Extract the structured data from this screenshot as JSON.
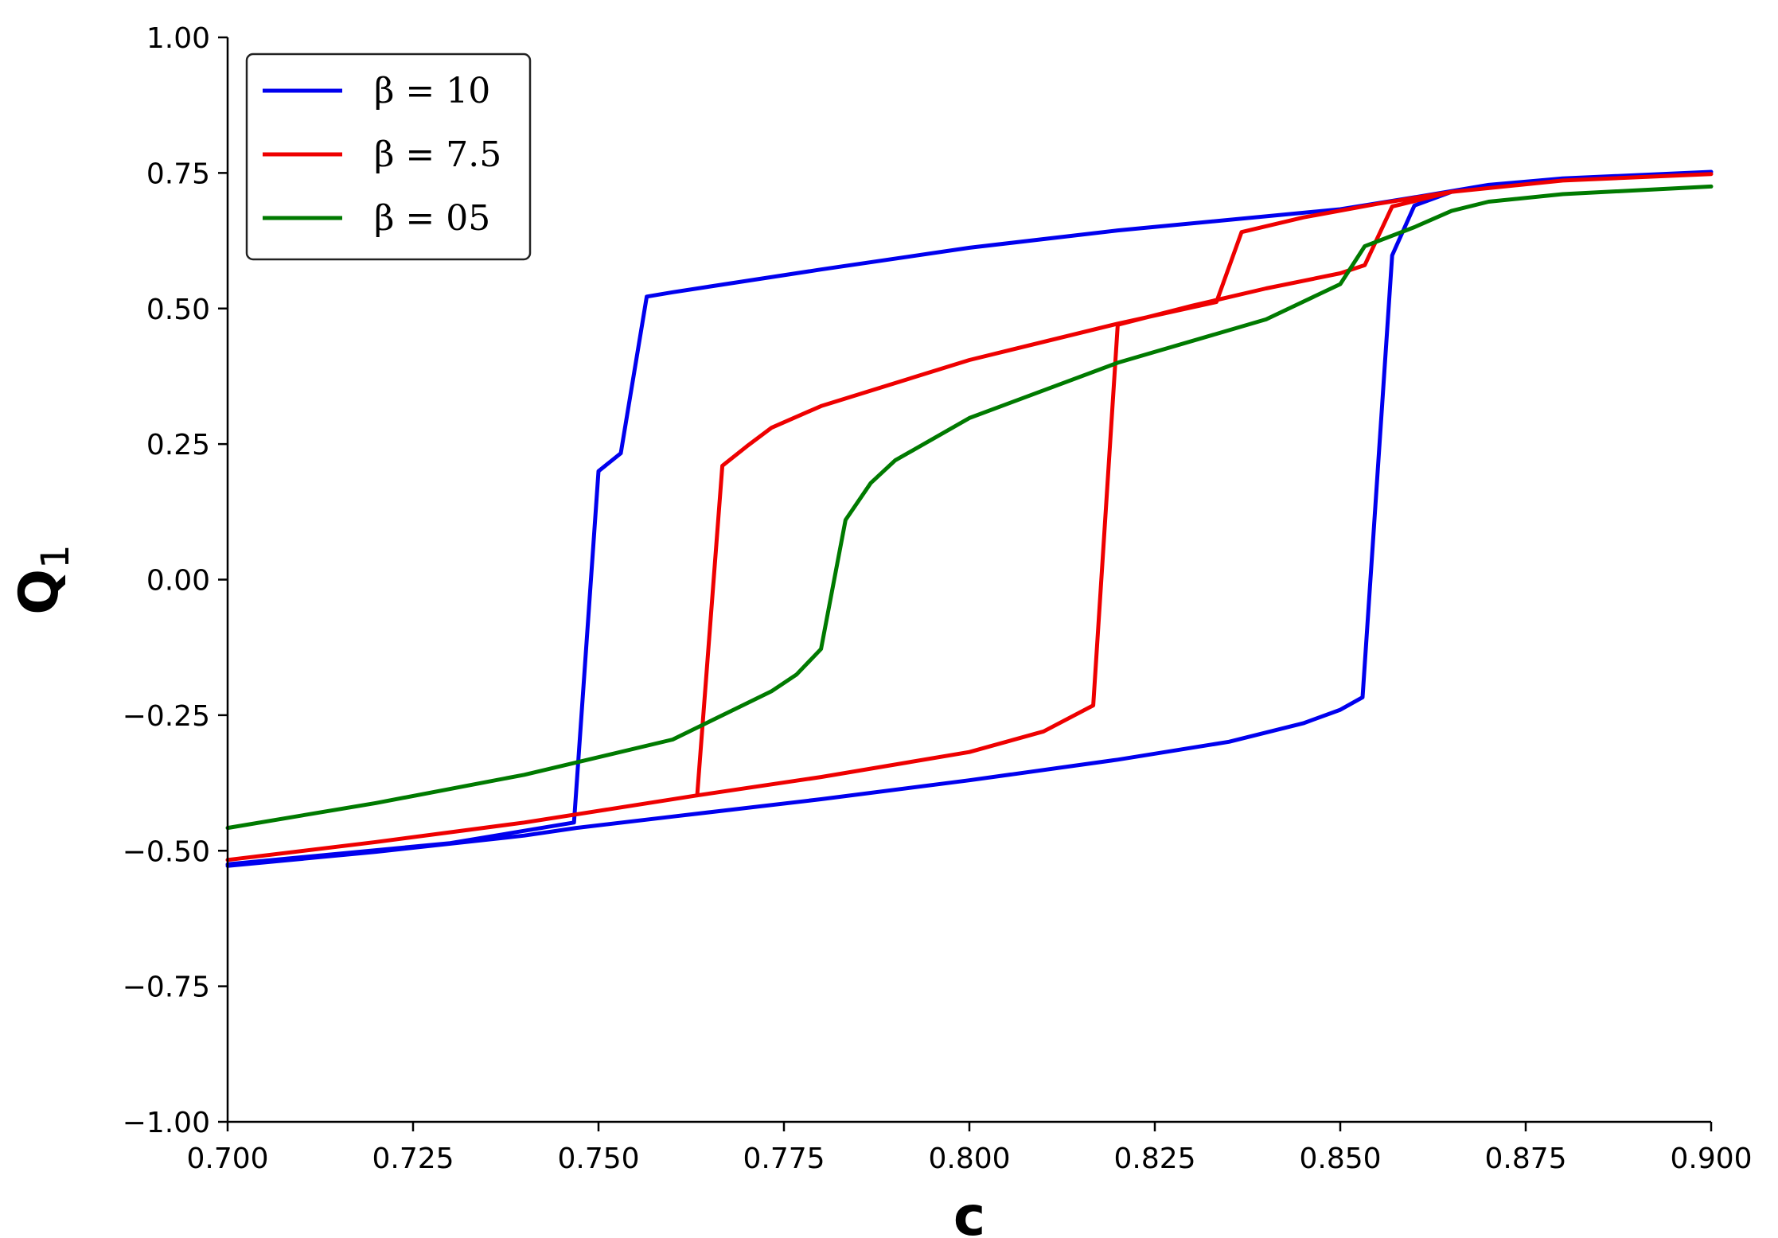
{
  "chart_data": {
    "type": "line",
    "title": "",
    "xlabel": "c",
    "ylabel": "Q",
    "ylabel_subscript": "1",
    "xlim": [
      0.7,
      0.9
    ],
    "ylim": [
      -1.0,
      1.0
    ],
    "x_ticks": [
      0.7,
      0.725,
      0.75,
      0.775,
      0.8,
      0.825,
      0.85,
      0.875,
      0.9
    ],
    "x_tick_labels": [
      "0.700",
      "0.725",
      "0.750",
      "0.775",
      "0.800",
      "0.825",
      "0.850",
      "0.875",
      "0.900"
    ],
    "y_ticks": [
      1.0,
      0.75,
      0.5,
      0.25,
      0.0,
      -0.25,
      -0.5,
      -0.75,
      -1.0
    ],
    "y_tick_labels": [
      "1.00",
      "0.75",
      "0.50",
      "0.25",
      "0.00",
      "−0.25",
      "−0.50",
      "−0.75",
      "−1.00"
    ],
    "grid": false,
    "legend_position": "top-left",
    "series": [
      {
        "name": "β = 10",
        "color": "#0000ee",
        "points": [
          [
            0.7,
            -0.528
          ],
          [
            0.72,
            -0.502
          ],
          [
            0.74,
            -0.472
          ],
          [
            0.747,
            -0.458
          ],
          [
            0.76,
            -0.437
          ],
          [
            0.78,
            -0.405
          ],
          [
            0.8,
            -0.37
          ],
          [
            0.82,
            -0.332
          ],
          [
            0.835,
            -0.299
          ],
          [
            0.845,
            -0.265
          ],
          [
            0.85,
            -0.24
          ],
          [
            0.853,
            -0.217
          ],
          [
            0.857,
            0.598
          ],
          [
            0.86,
            0.69
          ],
          [
            0.865,
            0.715
          ],
          [
            0.87,
            0.728
          ],
          [
            0.88,
            0.74
          ],
          [
            0.9,
            0.752
          ],
          [
            0.88,
            0.74
          ],
          [
            0.87,
            0.728
          ],
          [
            0.86,
            0.705
          ],
          [
            0.85,
            0.683
          ],
          [
            0.82,
            0.644
          ],
          [
            0.8,
            0.612
          ],
          [
            0.78,
            0.572
          ],
          [
            0.76,
            0.53
          ],
          [
            0.7565,
            0.522
          ],
          [
            0.753,
            0.233
          ],
          [
            0.75,
            0.2
          ],
          [
            0.7467,
            -0.448
          ],
          [
            0.73,
            -0.486
          ],
          [
            0.7,
            -0.525
          ]
        ]
      },
      {
        "name": "β = 7.5",
        "color": "#ee0000",
        "points": [
          [
            0.7,
            -0.517
          ],
          [
            0.72,
            -0.484
          ],
          [
            0.74,
            -0.448
          ],
          [
            0.7633,
            -0.398
          ],
          [
            0.78,
            -0.364
          ],
          [
            0.8,
            -0.318
          ],
          [
            0.81,
            -0.28
          ],
          [
            0.8167,
            -0.232
          ],
          [
            0.82,
            0.47
          ],
          [
            0.83,
            0.505
          ],
          [
            0.84,
            0.537
          ],
          [
            0.85,
            0.565
          ],
          [
            0.8533,
            0.58
          ],
          [
            0.857,
            0.688
          ],
          [
            0.865,
            0.715
          ],
          [
            0.88,
            0.736
          ],
          [
            0.9,
            0.748
          ],
          [
            0.88,
            0.736
          ],
          [
            0.865,
            0.715
          ],
          [
            0.855,
            0.693
          ],
          [
            0.845,
            0.668
          ],
          [
            0.8367,
            0.641
          ],
          [
            0.8333,
            0.512
          ],
          [
            0.82,
            0.472
          ],
          [
            0.8,
            0.405
          ],
          [
            0.78,
            0.32
          ],
          [
            0.7733,
            0.28
          ],
          [
            0.77,
            0.246
          ],
          [
            0.7667,
            0.21
          ],
          [
            0.7633,
            -0.398
          ]
        ]
      },
      {
        "name": "β = 05",
        "color": "#007a00",
        "points": [
          [
            0.7,
            -0.458
          ],
          [
            0.72,
            -0.412
          ],
          [
            0.74,
            -0.36
          ],
          [
            0.76,
            -0.295
          ],
          [
            0.7733,
            -0.206
          ],
          [
            0.7767,
            -0.175
          ],
          [
            0.78,
            -0.128
          ],
          [
            0.7833,
            0.11
          ],
          [
            0.7867,
            0.178
          ],
          [
            0.79,
            0.22
          ],
          [
            0.8,
            0.298
          ],
          [
            0.82,
            0.4
          ],
          [
            0.84,
            0.48
          ],
          [
            0.85,
            0.545
          ],
          [
            0.8533,
            0.615
          ],
          [
            0.86,
            0.65
          ],
          [
            0.865,
            0.68
          ],
          [
            0.87,
            0.697
          ],
          [
            0.88,
            0.711
          ],
          [
            0.9,
            0.725
          ]
        ]
      }
    ]
  }
}
